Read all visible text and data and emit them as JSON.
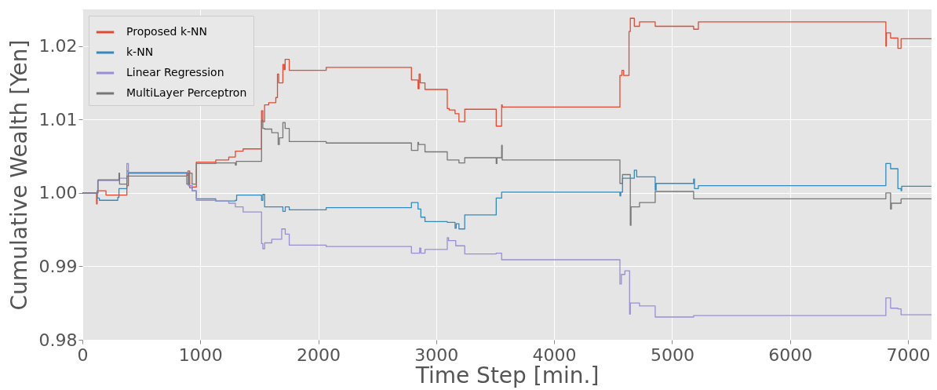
{
  "chart_data": {
    "type": "step",
    "xlabel": "Time Step [min.]",
    "ylabel": "Cumulative Wealth [Yen]",
    "xlim": [
      0,
      7200
    ],
    "ylim": [
      0.98,
      1.025
    ],
    "xticks": [
      0,
      1000,
      2000,
      3000,
      4000,
      5000,
      6000,
      7000
    ],
    "yticks": [
      0.98,
      0.99,
      {
        "value": 1,
        "label": "1.00"
      },
      1.01,
      1.02
    ],
    "grid": true,
    "legend": "top left",
    "line_style": "solid",
    "series": [
      {
        "name": "Proposed k-NN",
        "color": "#e24a33",
        "x": [
          0,
          120,
          125,
          130,
          200,
          377,
          390,
          885,
          895,
          910,
          935,
          966,
          1131,
          1241,
          1297,
          1363,
          1519,
          1530,
          1545,
          1580,
          1640,
          1654,
          1665,
          1700,
          1710,
          1719,
          1754,
          2067,
          2790,
          2846,
          2855,
          2865,
          2905,
          3094,
          3110,
          3160,
          3193,
          3242,
          3509,
          3555,
          3560,
          4558,
          4575,
          4590,
          4635,
          4646,
          4680,
          4724,
          4857,
          5183,
          5223,
          6813,
          6818,
          6853,
          6915,
          6942,
          7200
        ],
        "values": [
          1.0,
          0.9985,
          1.0003,
          1.0003,
          0.9997,
          1.001,
          1.0027,
          1.0024,
          1.003,
          1.0007,
          1.0008,
          1.0042,
          1.0045,
          1.0049,
          1.0057,
          1.006,
          1.0112,
          1.0097,
          1.012,
          1.0123,
          1.013,
          1.0162,
          1.015,
          1.0175,
          1.0168,
          1.0182,
          1.0167,
          1.0171,
          1.0154,
          1.0142,
          1.0162,
          1.015,
          1.0141,
          1.0115,
          1.0113,
          1.0108,
          1.0097,
          1.0114,
          1.0091,
          1.012,
          1.0117,
          1.016,
          1.0167,
          1.016,
          1.022,
          1.0238,
          1.0227,
          1.0233,
          1.0227,
          1.0223,
          1.0233,
          1.02,
          1.0218,
          1.0211,
          1.0197,
          1.021,
          1.021
        ]
      },
      {
        "name": "k-NN",
        "color": "#348abd",
        "x": [
          0,
          125,
          144,
          300,
          310,
          377,
          390,
          885,
          900,
          930,
          966,
          1131,
          1231,
          1297,
          1308,
          1519,
          1530,
          1545,
          1560,
          1700,
          1720,
          1754,
          2067,
          2790,
          2846,
          2870,
          2905,
          3094,
          3160,
          3170,
          3193,
          3242,
          3509,
          3555,
          4558,
          4565,
          4580,
          4680,
          4700,
          4857,
          4865,
          5183,
          5190,
          5223,
          6813,
          6853,
          6915,
          6942,
          6947,
          7200
        ],
        "values": [
          1.0,
          0.9993,
          0.999,
          0.9994,
          1.0006,
          1.003,
          1.0027,
          1.0027,
          1.001,
          1.0003,
          0.9992,
          0.9989,
          0.9989,
          0.999,
          0.9997,
          0.999,
          0.9998,
          0.9981,
          0.9981,
          0.9975,
          0.9981,
          0.9977,
          0.998,
          0.9987,
          0.9978,
          0.9967,
          0.9961,
          0.996,
          0.9952,
          0.9958,
          0.9951,
          0.997,
          0.9993,
          1.0001,
          0.9996,
          1.0001,
          1.002,
          1.0031,
          1.0022,
          1.0004,
          1.0013,
          1.0019,
          1.0006,
          1.001,
          1.004,
          1.0033,
          1.0006,
          1.0003,
          1.0009,
          1.0009
        ]
      },
      {
        "name": "Linear Regression",
        "color": "#988ed5",
        "x": [
          0,
          130,
          310,
          377,
          390,
          885,
          900,
          930,
          966,
          1131,
          1241,
          1297,
          1363,
          1519,
          1530,
          1545,
          1606,
          1690,
          1720,
          1754,
          2067,
          2790,
          2860,
          2870,
          2905,
          3094,
          3105,
          3166,
          3242,
          3509,
          3555,
          4558,
          4570,
          4600,
          4640,
          4646,
          4724,
          4857,
          5183,
          6813,
          6853,
          6915,
          6942,
          7200
        ],
        "values": [
          1.0,
          1.0017,
          1.002,
          1.004,
          1.0028,
          1.0028,
          1.001,
          1.0003,
          0.999,
          0.9989,
          0.9986,
          0.9981,
          0.9974,
          0.9931,
          0.9924,
          0.9932,
          0.9937,
          0.9951,
          0.9944,
          0.9929,
          0.9927,
          0.9918,
          0.9925,
          0.9918,
          0.9923,
          0.9939,
          0.9935,
          0.9928,
          0.9917,
          0.9918,
          0.9909,
          0.9876,
          0.9889,
          0.9894,
          0.9835,
          0.985,
          0.9846,
          0.9831,
          0.9833,
          0.9857,
          0.9843,
          0.9842,
          0.9834,
          0.9834
        ]
      },
      {
        "name": "MultiLayer Perceptron",
        "color": "#777777",
        "x": [
          0,
          133,
          310,
          315,
          377,
          885,
          900,
          930,
          966,
          1131,
          1297,
          1305,
          1363,
          1519,
          1530,
          1545,
          1606,
          1660,
          1670,
          1700,
          1719,
          1754,
          2067,
          2790,
          2845,
          2850,
          2905,
          3094,
          3193,
          3242,
          3509,
          3515,
          3555,
          3560,
          4558,
          4580,
          4646,
          4652,
          4724,
          4857,
          5183,
          6813,
          6853,
          6860,
          6942,
          7200
        ],
        "values": [
          1.0,
          1.0018,
          1.0027,
          1.0012,
          1.0023,
          1.0012,
          1.0027,
          1.0012,
          1.004,
          1.0041,
          1.0038,
          1.0043,
          1.0043,
          1.0099,
          1.0088,
          1.0087,
          1.0082,
          1.0066,
          1.0075,
          1.0096,
          1.0088,
          1.007,
          1.0068,
          1.0058,
          1.0069,
          1.0066,
          1.0056,
          1.0045,
          1.0041,
          1.0048,
          1.004,
          1.0048,
          1.0065,
          1.0045,
          1.0013,
          1.0025,
          0.9956,
          0.9981,
          0.9987,
          1.0002,
          0.9992,
          1.0,
          0.9978,
          0.9986,
          0.9992,
          0.9992
        ]
      }
    ]
  }
}
